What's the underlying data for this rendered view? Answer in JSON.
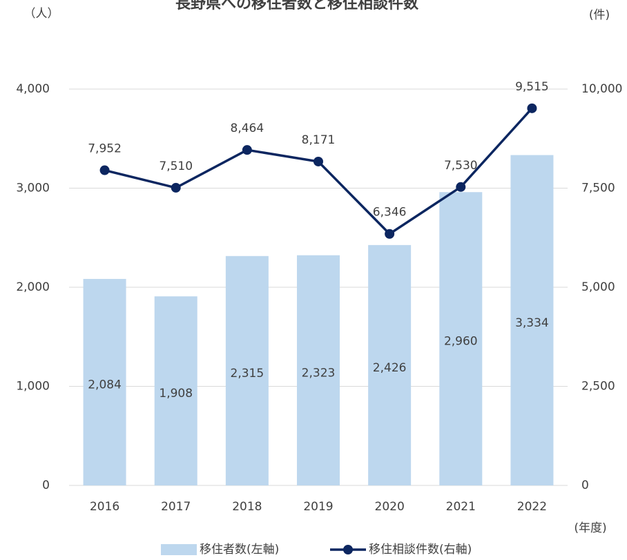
{
  "chart_data": {
    "type": "bar-line",
    "title": "長野県への移住者数と移住相談件数",
    "y_label": "（人）",
    "y2_label": "(件)",
    "x_label": "(年度)",
    "categories": [
      "2016",
      "2017",
      "2018",
      "2019",
      "2020",
      "2021",
      "2022"
    ],
    "series": [
      {
        "name": "移住者数(左軸)",
        "type": "bar",
        "color": "#bdd7ee",
        "axis": "y",
        "values": [
          2084,
          1908,
          2315,
          2323,
          2426,
          2960,
          3334
        ],
        "value_labels": [
          "2,084",
          "1,908",
          "2,315",
          "2,323",
          "2,426",
          "2,960",
          "3,334"
        ]
      },
      {
        "name": "移住相談件数(右軸)",
        "type": "line",
        "color": "#0c2660",
        "axis": "y2",
        "values": [
          7952,
          7510,
          8464,
          8171,
          6346,
          7530,
          9515
        ],
        "value_labels": [
          "7,952",
          "7,510",
          "8,464",
          "8,171",
          "6,346",
          "7,530",
          "9,515"
        ]
      }
    ],
    "ylim": [
      0,
      4000
    ],
    "yticks": [
      0,
      {
        "value": 1000,
        "label": "1,000"
      },
      {
        "value": 2000,
        "label": "2,000"
      },
      {
        "value": 3000,
        "label": "3,000"
      },
      {
        "value": 4000,
        "label": "4,000"
      }
    ],
    "y2lim": [
      0,
      10000
    ],
    "y2ticks": [
      0,
      {
        "value": 2500,
        "label": "2,500"
      },
      {
        "value": 5000,
        "label": "5,000"
      },
      {
        "value": 7500,
        "label": "7,500"
      },
      {
        "value": 10000,
        "label": "10,000"
      }
    ],
    "grid": true,
    "legend": "bottom"
  }
}
